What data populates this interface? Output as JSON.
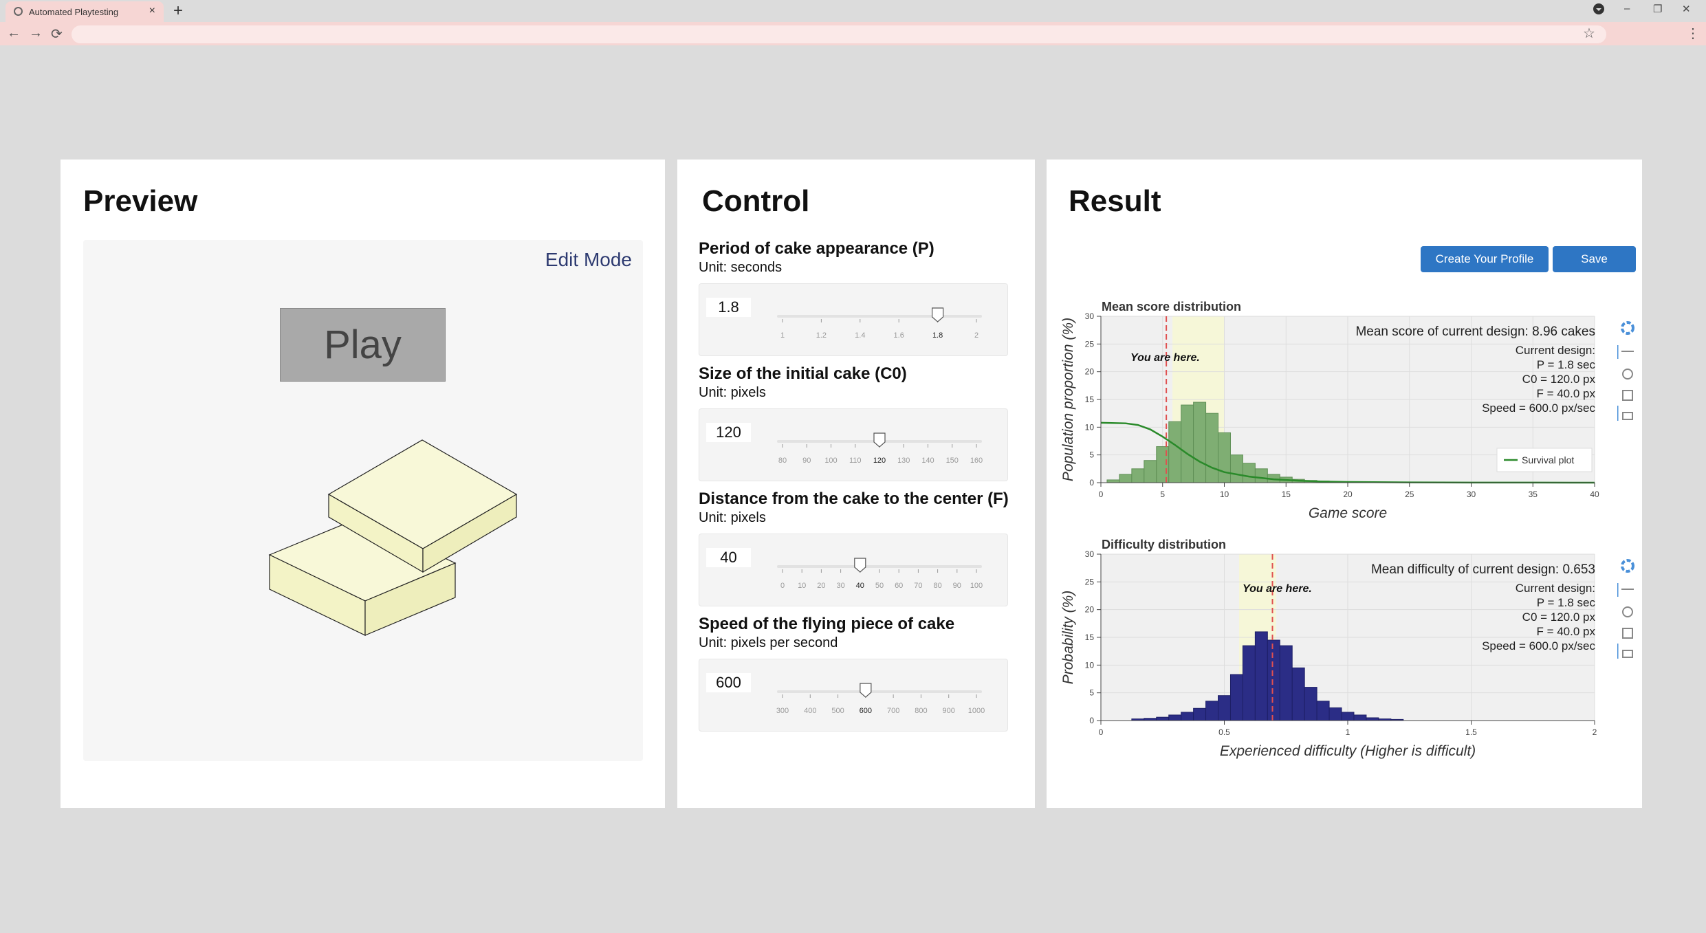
{
  "browser": {
    "tab_title": "Automated Playtesting",
    "tab_close": "×",
    "new_tab": "+",
    "window_controls": [
      "–",
      "❐",
      "✕"
    ],
    "nav": [
      "←",
      "→",
      "⟳"
    ],
    "star": "☆",
    "menu": "⋮"
  },
  "preview": {
    "title": "Preview",
    "edit_mode": "Edit Mode",
    "play": "Play"
  },
  "control": {
    "title": "Control",
    "items": [
      {
        "label": "Period of cake appearance (P)",
        "unit": "Unit: seconds",
        "value": "1.8",
        "min": 1,
        "max": 2,
        "current": 1.8,
        "ticks": [
          "1",
          "1.2",
          "1.4",
          "1.6",
          "1.8",
          "2"
        ]
      },
      {
        "label": "Size of the initial cake (C0)",
        "unit": "Unit: pixels",
        "value": "120",
        "min": 80,
        "max": 160,
        "current": 120,
        "ticks": [
          "80",
          "90",
          "100",
          "110",
          "120",
          "130",
          "140",
          "150",
          "160"
        ]
      },
      {
        "label": "Distance from the cake to the center (F)",
        "unit": "Unit: pixels",
        "value": "40",
        "min": 0,
        "max": 100,
        "current": 40,
        "ticks": [
          "0",
          "10",
          "20",
          "30",
          "40",
          "50",
          "60",
          "70",
          "80",
          "90",
          "100"
        ]
      },
      {
        "label": "Speed of the flying piece of cake",
        "unit": "Unit: pixels per second",
        "value": "600",
        "min": 300,
        "max": 1000,
        "current": 600,
        "ticks": [
          "300",
          "400",
          "500",
          "600",
          "700",
          "800",
          "900",
          "1000"
        ]
      }
    ]
  },
  "result": {
    "title": "Result",
    "btn_profile": "Create Your Profile",
    "btn_save": "Save",
    "score": {
      "mean_text": "Mean score of current design: 8.96 cakes",
      "design_lines": [
        "Current design:",
        "P = 1.8 sec",
        "C0 = 120.0 px",
        "F = 40.0 px",
        "Speed = 600.0 px/sec"
      ],
      "you_are_here": "You are here."
    },
    "difficulty": {
      "mean_text": "Mean difficulty of current design: 0.653",
      "design_lines": [
        "Current design:",
        "P = 1.8 sec",
        "C0 = 120.0 px",
        "F = 40.0 px",
        "Speed = 600.0 px/sec"
      ],
      "you_are_here": "You are here."
    }
  },
  "colors": {
    "accent": "#2e76c4",
    "green_bar": "#7fae73",
    "green_line": "#2a8a2a",
    "navy_bar": "#2b2d86",
    "highlight": "#f6f7d8",
    "marker": "#e05050"
  },
  "chart_data": [
    {
      "type": "bar",
      "title": "Mean score distribution",
      "xlabel": "Game score",
      "ylabel": "Population proportion (%)",
      "xlim": [
        0,
        40
      ],
      "ylim": [
        0,
        30
      ],
      "xticks": [
        0,
        5,
        10,
        15,
        20,
        25,
        30,
        35,
        40
      ],
      "yticks": [
        0,
        5,
        10,
        15,
        20,
        25,
        30
      ],
      "bin_width": 1,
      "highlight_range": [
        5.8,
        10
      ],
      "marker_x": 5.3,
      "series": [
        {
          "values": [
            [
              1,
              0.5
            ],
            [
              2,
              1.5
            ],
            [
              3,
              2.5
            ],
            [
              4,
              4.0
            ],
            [
              5,
              6.5
            ],
            [
              6,
              11.0
            ],
            [
              7,
              14.0
            ],
            [
              8,
              14.5
            ],
            [
              9,
              12.5
            ],
            [
              10,
              9.0
            ],
            [
              11,
              5.0
            ],
            [
              12,
              3.5
            ],
            [
              13,
              2.5
            ],
            [
              14,
              1.5
            ],
            [
              15,
              1.0
            ],
            [
              16,
              0.6
            ],
            [
              17,
              0.4
            ],
            [
              18,
              0.3
            ],
            [
              19,
              0.2
            ],
            [
              20,
              0.15
            ],
            [
              21,
              0.1
            ],
            [
              22,
              0.1
            ]
          ]
        },
        {
          "name": "Survival plot",
          "type": "line",
          "values": [
            [
              0,
              10.8
            ],
            [
              2,
              10.7
            ],
            [
              3,
              10.4
            ],
            [
              4,
              9.6
            ],
            [
              5,
              8.3
            ],
            [
              6,
              6.8
            ],
            [
              7,
              5.2
            ],
            [
              8,
              3.8
            ],
            [
              9,
              2.7
            ],
            [
              10,
              1.9
            ],
            [
              12,
              1.1
            ],
            [
              14,
              0.6
            ],
            [
              16,
              0.35
            ],
            [
              18,
              0.2
            ],
            [
              20,
              0.12
            ],
            [
              25,
              0.05
            ],
            [
              30,
              0.02
            ],
            [
              35,
              0.01
            ],
            [
              40,
              0.0
            ]
          ]
        }
      ]
    },
    {
      "type": "bar",
      "title": "Difficulty distribution",
      "xlabel": "Experienced difficulty (Higher is difficult)",
      "ylabel": "Probability (%)",
      "xlim": [
        0,
        2
      ],
      "ylim": [
        0,
        30
      ],
      "xticks": [
        "0",
        "0.5",
        "1",
        "1.5",
        "2"
      ],
      "yticks": [
        0,
        5,
        10,
        15,
        20,
        25,
        30
      ],
      "bin_width": 0.05,
      "highlight_range": [
        0.56,
        0.71
      ],
      "marker_x": 0.695,
      "series": [
        {
          "values": [
            [
              0.15,
              0.3
            ],
            [
              0.2,
              0.4
            ],
            [
              0.25,
              0.6
            ],
            [
              0.3,
              1.0
            ],
            [
              0.35,
              1.5
            ],
            [
              0.4,
              2.2
            ],
            [
              0.45,
              3.5
            ],
            [
              0.5,
              4.5
            ],
            [
              0.55,
              8.3
            ],
            [
              0.6,
              13.5
            ],
            [
              0.65,
              16.0
            ],
            [
              0.7,
              14.5
            ],
            [
              0.75,
              13.5
            ],
            [
              0.8,
              9.5
            ],
            [
              0.85,
              6.0
            ],
            [
              0.9,
              3.5
            ],
            [
              0.95,
              2.3
            ],
            [
              1.0,
              1.5
            ],
            [
              1.05,
              1.0
            ],
            [
              1.1,
              0.5
            ],
            [
              1.15,
              0.3
            ],
            [
              1.2,
              0.2
            ]
          ]
        }
      ]
    }
  ]
}
